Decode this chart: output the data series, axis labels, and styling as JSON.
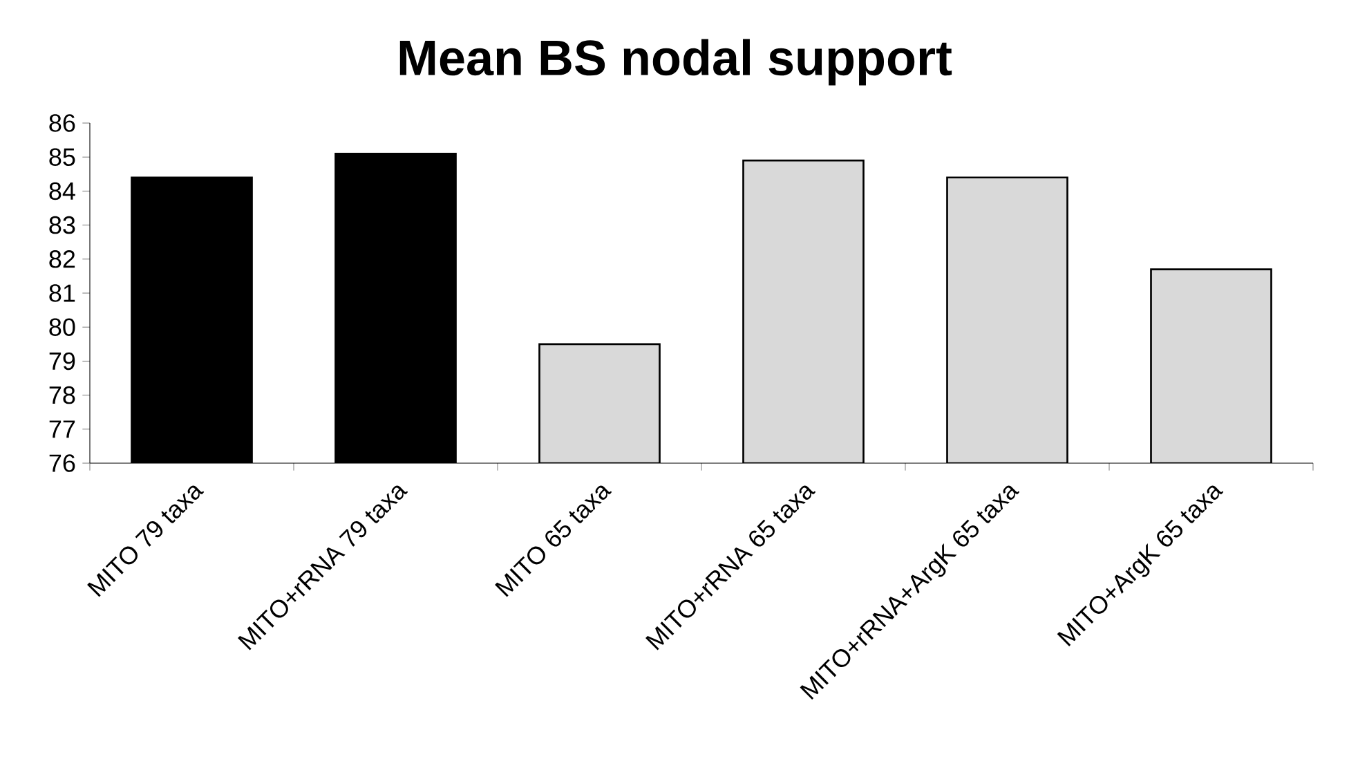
{
  "chart_data": {
    "type": "bar",
    "title": "Mean BS nodal support",
    "categories": [
      "MITO 79 taxa",
      "MITO+rRNA 79 taxa",
      "MITO 65 taxa",
      "MITO+rRNA 65 taxa",
      "MITO+rRNA+ArgK 65 taxa",
      "MITO+ArgK 65 taxa"
    ],
    "values": [
      84.4,
      85.1,
      79.5,
      84.9,
      84.4,
      81.7
    ],
    "colors": [
      "#000000",
      "#000000",
      "#d9d9d9",
      "#d9d9d9",
      "#d9d9d9",
      "#d9d9d9"
    ],
    "ylim": [
      76,
      86
    ],
    "yticks": [
      76,
      77,
      78,
      79,
      80,
      81,
      82,
      83,
      84,
      85,
      86
    ]
  }
}
